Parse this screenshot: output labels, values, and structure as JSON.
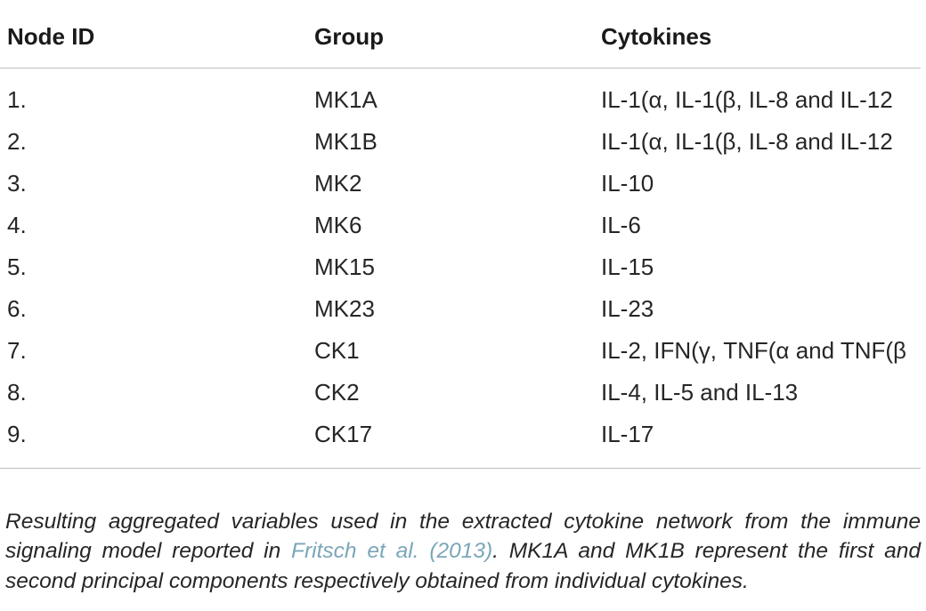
{
  "table": {
    "headers": {
      "node_id": "Node ID",
      "group": "Group",
      "cytokines": "Cytokines"
    },
    "rows": [
      {
        "node_id": "1.",
        "group": "MK1A",
        "cytokines": "IL-1(α, IL-1(β, IL-8 and IL-12"
      },
      {
        "node_id": "2.",
        "group": "MK1B",
        "cytokines": "IL-1(α, IL-1(β, IL-8 and IL-12"
      },
      {
        "node_id": "3.",
        "group": "MK2",
        "cytokines": "IL-10"
      },
      {
        "node_id": "4.",
        "group": "MK6",
        "cytokines": "IL-6"
      },
      {
        "node_id": "5.",
        "group": "MK15",
        "cytokines": "IL-15"
      },
      {
        "node_id": "6.",
        "group": "MK23",
        "cytokines": "IL-23"
      },
      {
        "node_id": "7.",
        "group": "CK1",
        "cytokines": "IL-2, IFN(γ, TNF(α and TNF(β"
      },
      {
        "node_id": "8.",
        "group": "CK2",
        "cytokines": "IL-4, IL-5 and IL-13"
      },
      {
        "node_id": "9.",
        "group": "CK17",
        "cytokines": "IL-17"
      }
    ]
  },
  "caption": {
    "text_before": "Resulting aggregated variables used in the extracted cytokine network from the immune signaling model reported in ",
    "reference": "Fritsch et al. (2013)",
    "text_after": ". MK1A and MK1B represent the first and second principal components respectively obtained from individual cytokines."
  },
  "colors": {
    "text": "#1a1a1a",
    "rule": "#bdbdbd",
    "link": "#7aa6b8"
  }
}
